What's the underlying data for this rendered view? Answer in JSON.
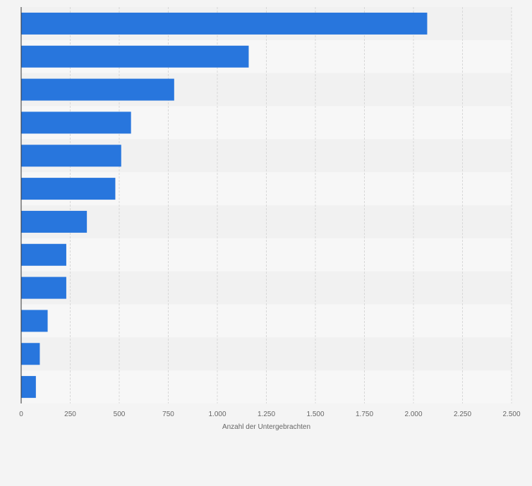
{
  "chart_data": {
    "type": "bar",
    "orientation": "horizontal",
    "title": "",
    "xlabel": "Anzahl der Untergebrachten",
    "ylabel": "",
    "categories": [
      "",
      "",
      "",
      "",
      "",
      "",
      "",
      "",
      "",
      "",
      "",
      ""
    ],
    "values": [
      2070,
      1160,
      780,
      560,
      510,
      480,
      335,
      230,
      230,
      135,
      95,
      75
    ],
    "xlim": [
      0,
      2500
    ],
    "xticks": [
      0,
      250,
      500,
      750,
      1000,
      1250,
      1500,
      1750,
      2000,
      2250,
      2500
    ],
    "xtick_labels": [
      "0",
      "250",
      "500",
      "750",
      "1.000",
      "1.250",
      "1.500",
      "1.750",
      "2.000",
      "2.250",
      "2.500"
    ],
    "grid": true,
    "legend": "none",
    "colors": {
      "bar": "#2876dd",
      "band_light": "#f7f7f7",
      "band_dark": "#f1f1f1",
      "grid": "#d8d8d8",
      "axis": "#333333",
      "text": "#666666"
    }
  }
}
